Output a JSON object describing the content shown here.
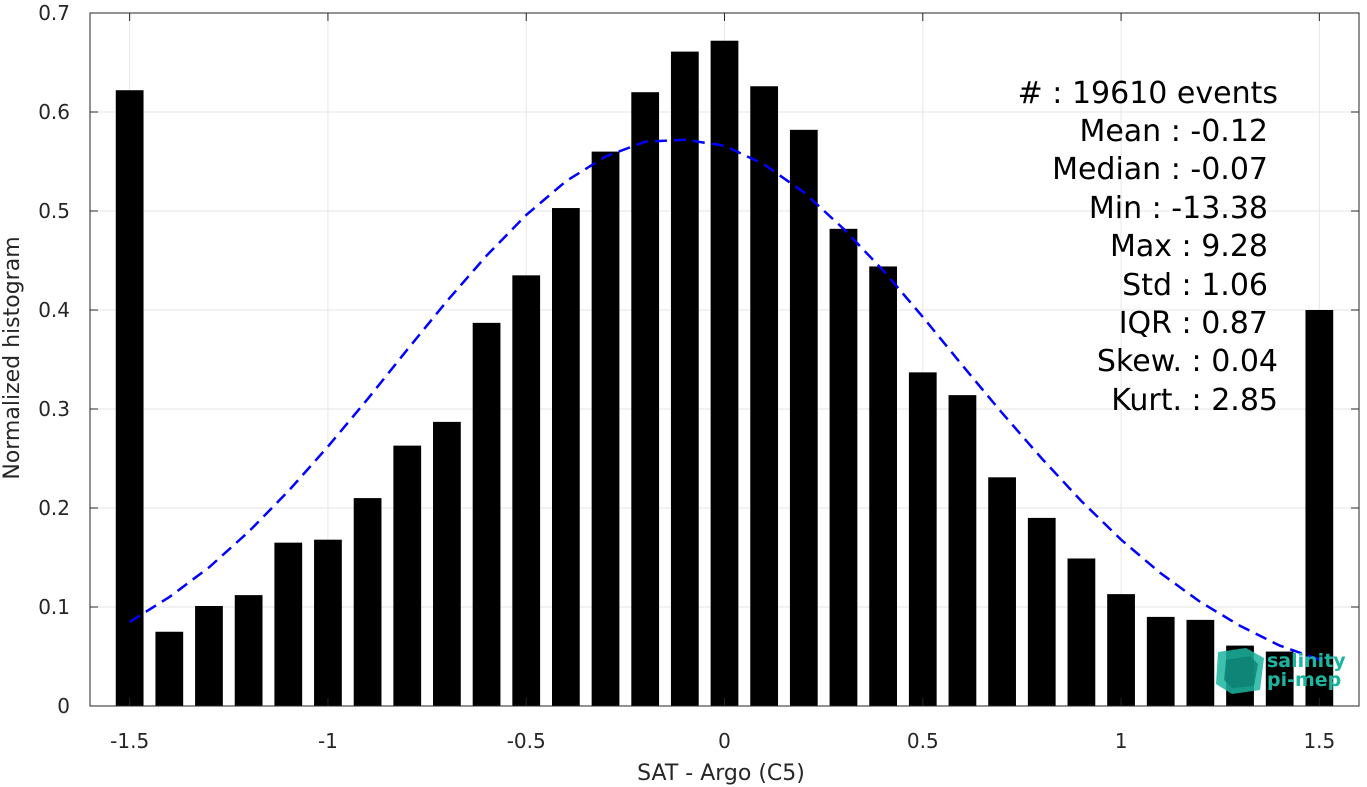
{
  "chart_data": {
    "type": "bar",
    "xlabel": "SAT - Argo (C5)",
    "ylabel": "Normalized histogram",
    "xlim": [
      -1.6,
      1.6
    ],
    "ylim": [
      0,
      0.7
    ],
    "grid": true,
    "x_ticks": [
      -1.5,
      -1,
      -0.5,
      0,
      0.5,
      1,
      1.5
    ],
    "x_tick_labels": [
      "-1.5",
      "-1",
      "-0.5",
      "0",
      "0.5",
      "1",
      "1.5"
    ],
    "y_ticks": [
      0,
      0.1,
      0.2,
      0.3,
      0.4,
      0.5,
      0.6,
      0.7
    ],
    "y_tick_labels": [
      "0",
      "0.1",
      "0.2",
      "0.3",
      "0.4",
      "0.5",
      "0.6",
      "0.7"
    ],
    "bar_width": 0.07,
    "x": [
      -1.5,
      -1.4,
      -1.3,
      -1.2,
      -1.1,
      -1.0,
      -0.9,
      -0.8,
      -0.7,
      -0.6,
      -0.5,
      -0.4,
      -0.3,
      -0.2,
      -0.1,
      0.0,
      0.1,
      0.2,
      0.3,
      0.4,
      0.5,
      0.6,
      0.7,
      0.8,
      0.9,
      1.0,
      1.1,
      1.2,
      1.3,
      1.4,
      1.5
    ],
    "values": [
      0.622,
      0.075,
      0.101,
      0.112,
      0.165,
      0.168,
      0.21,
      0.263,
      0.287,
      0.387,
      0.435,
      0.503,
      0.56,
      0.62,
      0.661,
      0.672,
      0.626,
      0.582,
      0.482,
      0.444,
      0.337,
      0.314,
      0.231,
      0.19,
      0.149,
      0.113,
      0.09,
      0.087,
      0.061,
      0.055,
      0.4
    ],
    "bar_color": "#000000",
    "fit_curve": {
      "style": "dashed",
      "color": "#0000ff",
      "x": [
        -1.5,
        -1.4,
        -1.3,
        -1.2,
        -1.1,
        -1.0,
        -0.9,
        -0.8,
        -0.7,
        -0.6,
        -0.5,
        -0.4,
        -0.3,
        -0.2,
        -0.1,
        0.0,
        0.1,
        0.2,
        0.3,
        0.4,
        0.5,
        0.6,
        0.7,
        0.8,
        0.9,
        1.0,
        1.1,
        1.2,
        1.3,
        1.4,
        1.5
      ],
      "y": [
        0.085,
        0.11,
        0.14,
        0.176,
        0.217,
        0.262,
        0.31,
        0.36,
        0.409,
        0.455,
        0.496,
        0.53,
        0.555,
        0.57,
        0.572,
        0.566,
        0.547,
        0.519,
        0.482,
        0.44,
        0.393,
        0.344,
        0.296,
        0.25,
        0.207,
        0.168,
        0.134,
        0.105,
        0.081,
        0.061,
        0.047
      ]
    },
    "annotations": [
      "#  : 19610 events",
      "Mean : -0.12",
      "Median : -0.07",
      "Min : -13.38",
      "Max : 9.28",
      "Std : 1.06",
      "IQR : 0.87",
      "Skew. : 0.04",
      "Kurt. : 2.85"
    ]
  },
  "logo": {
    "line1": "salinity",
    "line2": "pi-mep",
    "color": "#1bb5a0"
  }
}
